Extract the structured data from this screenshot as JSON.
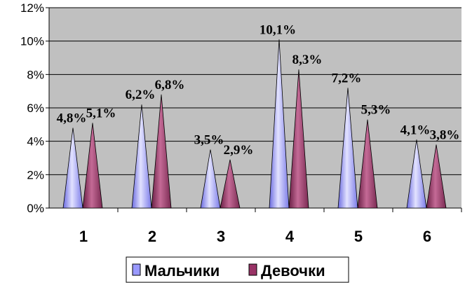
{
  "chart_data": {
    "type": "bar",
    "categories": [
      "1",
      "2",
      "3",
      "4",
      "5",
      "6"
    ],
    "series": [
      {
        "name": "Мальчики",
        "values": [
          4.8,
          6.2,
          3.5,
          10.1,
          7.2,
          4.1
        ],
        "labels": [
          "4,8%",
          "6,2%",
          "3,5%",
          "10,1%",
          "7,2%",
          "4,1%"
        ],
        "color": "#9999ff"
      },
      {
        "name": "Девочки",
        "values": [
          5.1,
          6.8,
          2.9,
          8.3,
          5.3,
          3.8
        ],
        "labels": [
          "5,1%",
          "6,8%",
          "2,9%",
          "8,3%",
          "5,3%",
          "3,8%"
        ],
        "color": "#993366"
      }
    ],
    "y_ticks": [
      "0%",
      "2%",
      "4%",
      "6%",
      "8%",
      "10%",
      "12%"
    ],
    "ylim": [
      0,
      12
    ],
    "grid": true,
    "plot_background": "#c0c0c0",
    "legend_position": "bottom",
    "title": "",
    "xlabel": "",
    "ylabel": ""
  }
}
